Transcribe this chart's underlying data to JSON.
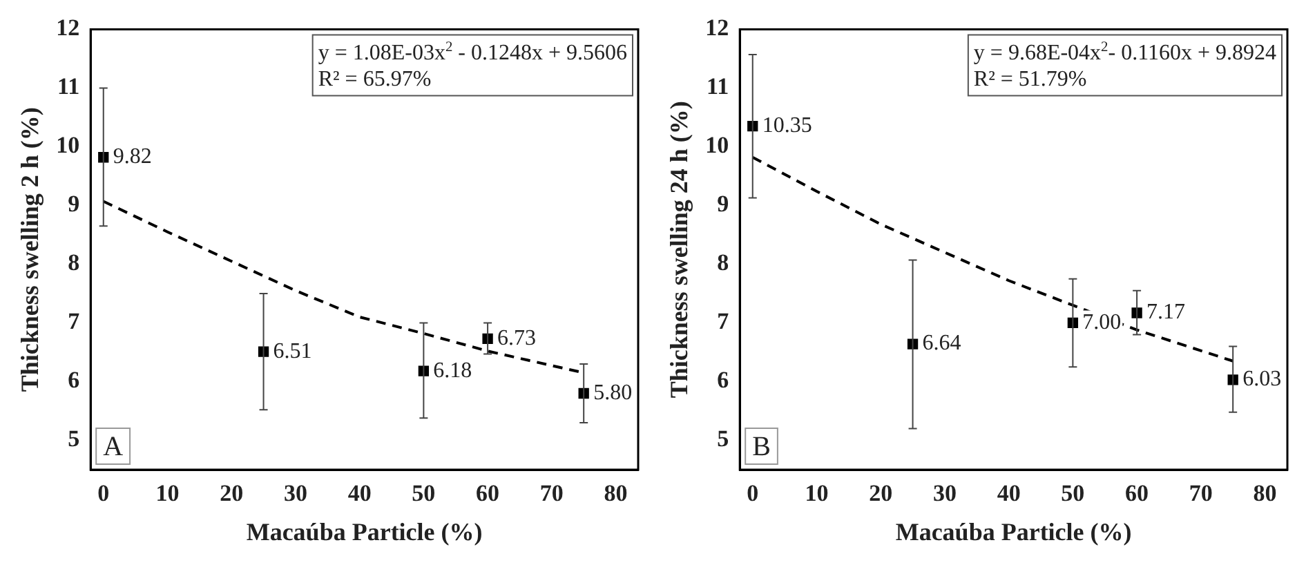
{
  "chart_data": [
    {
      "type": "scatter",
      "xlabel": "Macaúba Particle (%)",
      "ylabel": "Thickness swelling 2 h (%)",
      "xlim": [
        -2,
        83.5
      ],
      "xticks": [
        0,
        10,
        20,
        30,
        40,
        50,
        60,
        70,
        80
      ],
      "ylim": [
        4.5,
        12
      ],
      "yticks": [
        5,
        6,
        7,
        8,
        9,
        10,
        11,
        12
      ],
      "grid": false,
      "legend": false,
      "annotations": [
        "y = 1.08E-03x$^{2}$ - 0.1248x + 9.5606",
        "R² = 65.97%",
        "A"
      ],
      "series": [
        {
          "type": "scatter",
          "color": "#000000",
          "marker": "square",
          "x": [
            0,
            25,
            50,
            60,
            75
          ],
          "values": [
            9.82,
            6.51,
            6.18,
            6.73,
            5.8
          ],
          "value_labels": [
            "9.82",
            "6.51",
            "6.18",
            "6.73",
            "5.80"
          ],
          "errors": [
            [
              8.65,
              11.0
            ],
            [
              5.52,
              7.5
            ],
            [
              5.38,
              7.0
            ],
            [
              6.47,
              7.0
            ],
            [
              5.3,
              6.3
            ]
          ]
        },
        {
          "type": "line",
          "color": "#000000",
          "marker": "none",
          "line_style": "dashed",
          "x": [
            0,
            10,
            20,
            30,
            40,
            50,
            60,
            75
          ],
          "values": [
            9.07,
            8.55,
            8.05,
            7.55,
            7.1,
            6.82,
            6.52,
            6.15
          ]
        }
      ]
    },
    {
      "type": "scatter",
      "xlabel": "Macaúba Particle (%)",
      "ylabel": "Thickness swelling 24 h (%)",
      "xlim": [
        -2,
        83.5
      ],
      "xticks": [
        0,
        10,
        20,
        30,
        40,
        50,
        60,
        70,
        80
      ],
      "ylim": [
        4.5,
        12
      ],
      "yticks": [
        5,
        6,
        7,
        8,
        9,
        10,
        11,
        12
      ],
      "grid": false,
      "legend": false,
      "annotations": [
        "y = 9.68E-04x$^{2}$- 0.1160x + 9.8924",
        "R² = 51.79%",
        "B"
      ],
      "series": [
        {
          "type": "scatter",
          "color": "#000000",
          "marker": "square",
          "x": [
            0,
            25,
            50,
            60,
            75
          ],
          "values": [
            10.35,
            6.64,
            7.0,
            7.17,
            6.03
          ],
          "value_labels": [
            "10.35",
            "6.64",
            "7.00",
            "7.17",
            "6.03"
          ],
          "errors": [
            [
              9.13,
              11.57
            ],
            [
              5.2,
              8.07
            ],
            [
              6.25,
              7.75
            ],
            [
              6.8,
              7.55
            ],
            [
              5.48,
              6.6
            ]
          ]
        },
        {
          "type": "line",
          "color": "#000000",
          "marker": "none",
          "line_style": "dashed",
          "x": [
            0,
            10,
            20,
            30,
            40,
            50,
            60,
            75
          ],
          "values": [
            9.82,
            9.24,
            8.68,
            8.2,
            7.72,
            7.3,
            6.88,
            6.35
          ]
        }
      ]
    }
  ]
}
